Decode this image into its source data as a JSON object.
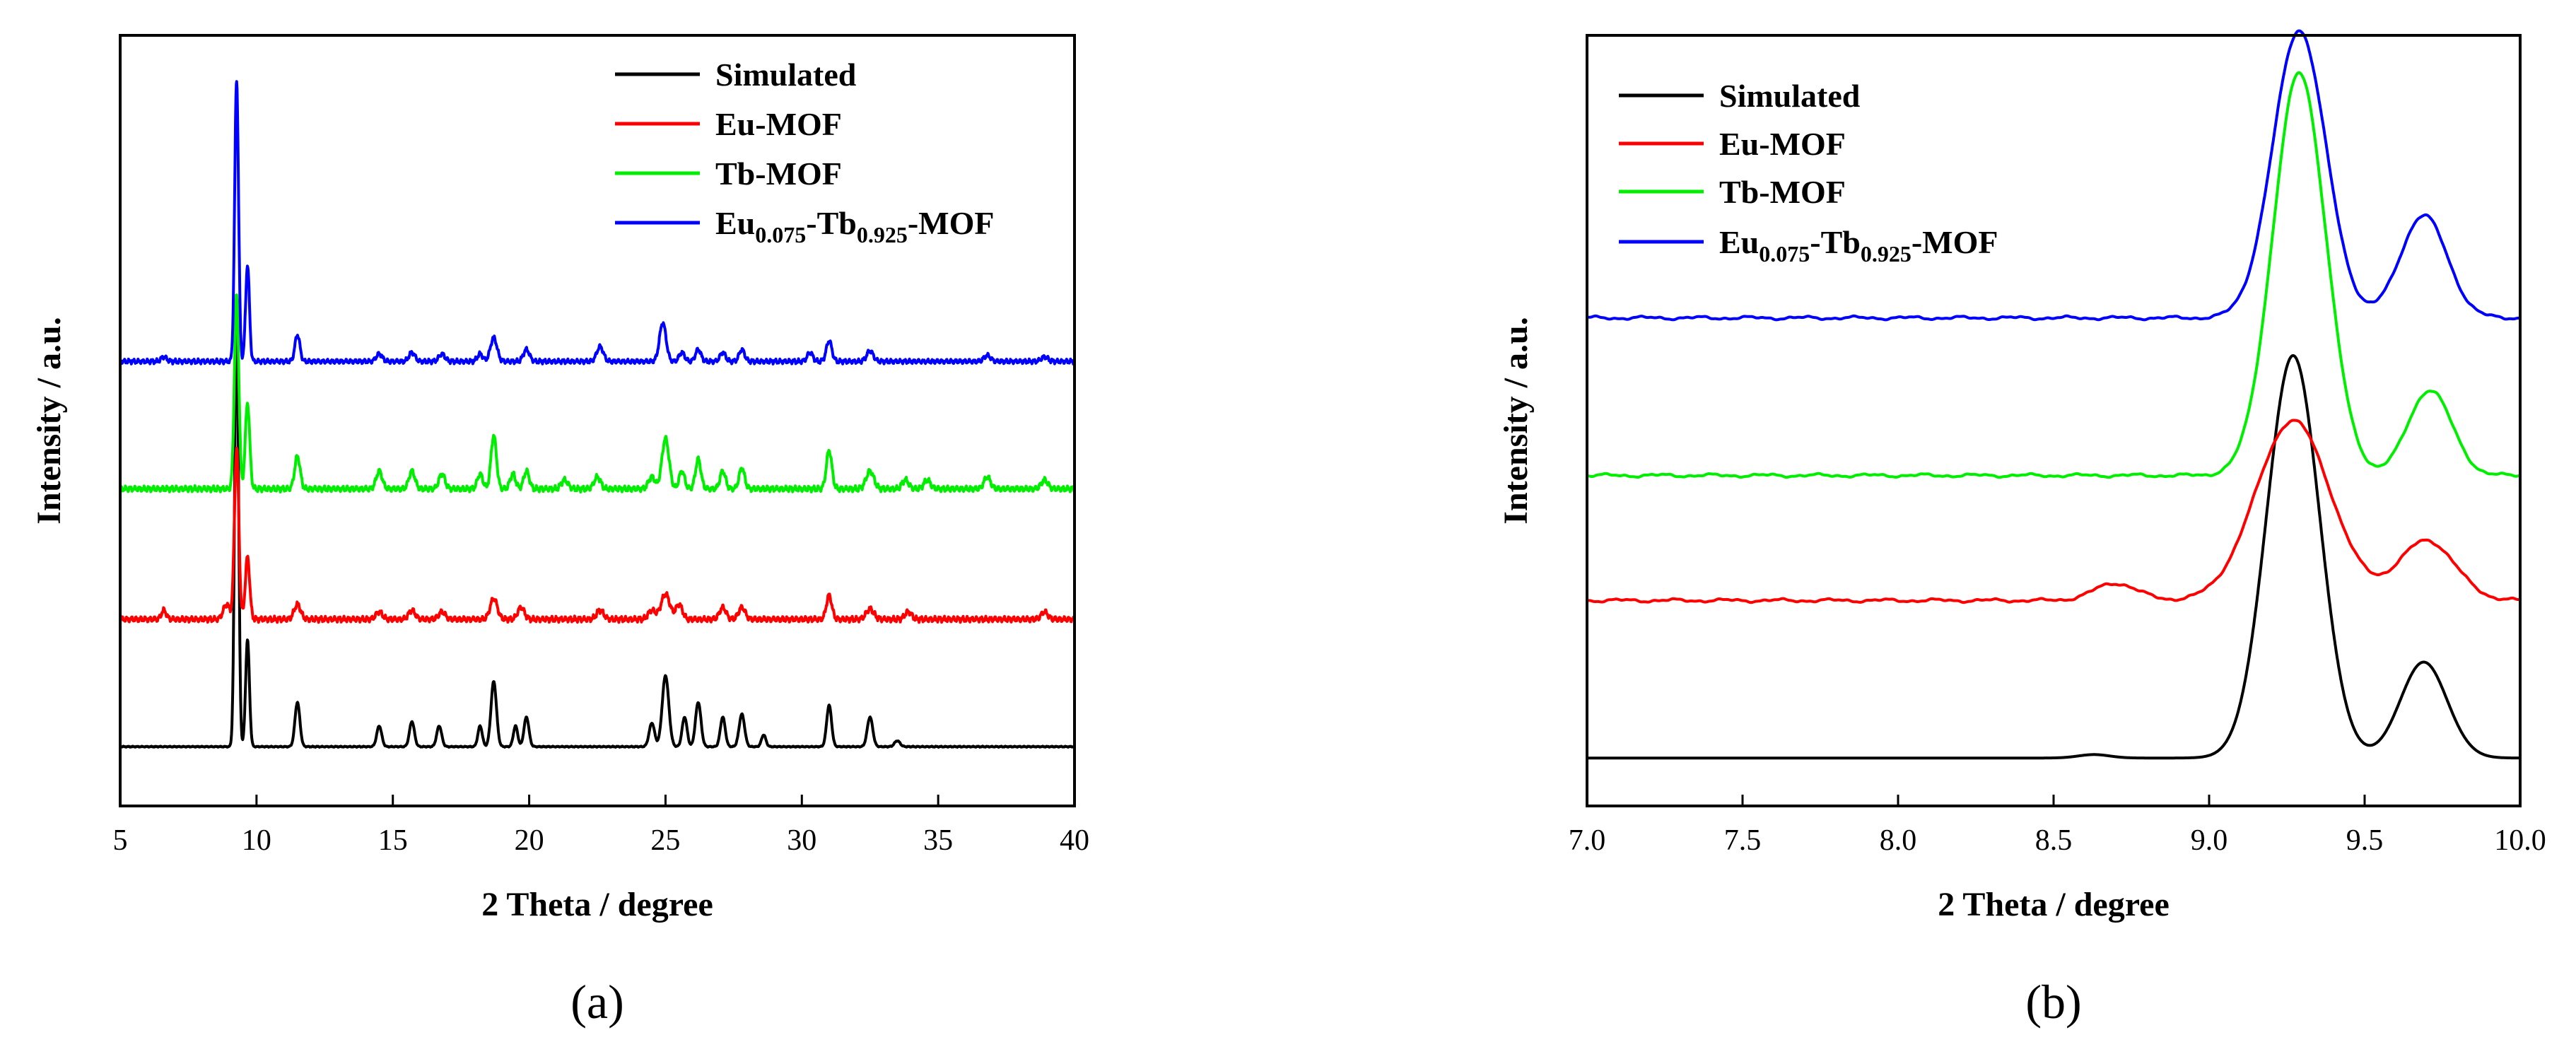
{
  "chart_data": [
    {
      "type": "line",
      "panel": "a",
      "panel_label": "(a)",
      "xlabel": "2 Theta / degree",
      "ylabel": "Intensity / a.u.",
      "xlim": [
        5,
        40
      ],
      "ylim": [
        0,
        5.2
      ],
      "xticks": [
        5,
        10,
        15,
        20,
        25,
        30,
        35,
        40
      ],
      "xtick_labels": [
        "5",
        "10",
        "15",
        "20",
        "25",
        "30",
        "35",
        "40"
      ],
      "legend": {
        "position": "top-right",
        "entries": [
          {
            "text": "Simulated",
            "color": "#000000"
          },
          {
            "text": "Eu-MOF",
            "color": "#ff0000"
          },
          {
            "text": "Tb-MOF",
            "color": "#00ee00"
          },
          {
            "main": "Eu",
            "sub1": "0.075",
            "mid": "-Tb",
            "sub2": "0.925",
            "tail": "-MOF",
            "color": "#0000ff"
          }
        ]
      },
      "series": [
        {
          "name": "Simulated",
          "color": "#000000",
          "offset": 0.4,
          "noise": 0.004,
          "peaks": [
            [
              9.27,
              3.0,
              0.07
            ],
            [
              9.67,
              0.72,
              0.07
            ],
            [
              11.5,
              0.3,
              0.09
            ],
            [
              14.5,
              0.14,
              0.09
            ],
            [
              15.7,
              0.17,
              0.09
            ],
            [
              16.7,
              0.14,
              0.09
            ],
            [
              18.2,
              0.14,
              0.08
            ],
            [
              18.7,
              0.44,
              0.1
            ],
            [
              19.5,
              0.14,
              0.08
            ],
            [
              19.9,
              0.2,
              0.09
            ],
            [
              24.5,
              0.16,
              0.1
            ],
            [
              25.0,
              0.48,
              0.12
            ],
            [
              25.7,
              0.2,
              0.09
            ],
            [
              26.2,
              0.3,
              0.1
            ],
            [
              27.1,
              0.2,
              0.09
            ],
            [
              27.8,
              0.22,
              0.1
            ],
            [
              28.6,
              0.08,
              0.08
            ],
            [
              31.0,
              0.28,
              0.09
            ],
            [
              32.5,
              0.2,
              0.1
            ],
            [
              33.5,
              0.04,
              0.1
            ]
          ]
        },
        {
          "name": "Eu-MOF",
          "color": "#ff0000",
          "offset": 1.26,
          "noise": 0.022,
          "peaks": [
            [
              6.6,
              0.06,
              0.09
            ],
            [
              8.9,
              0.1,
              0.12
            ],
            [
              9.27,
              1.15,
              0.08
            ],
            [
              9.67,
              0.42,
              0.08
            ],
            [
              11.5,
              0.1,
              0.12
            ],
            [
              14.5,
              0.05,
              0.12
            ],
            [
              15.7,
              0.06,
              0.12
            ],
            [
              16.8,
              0.05,
              0.12
            ],
            [
              18.7,
              0.14,
              0.13
            ],
            [
              19.7,
              0.08,
              0.12
            ],
            [
              22.6,
              0.06,
              0.13
            ],
            [
              24.5,
              0.06,
              0.13
            ],
            [
              25.0,
              0.17,
              0.16
            ],
            [
              25.5,
              0.1,
              0.12
            ],
            [
              27.1,
              0.08,
              0.12
            ],
            [
              27.8,
              0.08,
              0.12
            ],
            [
              31.0,
              0.16,
              0.1
            ],
            [
              32.5,
              0.07,
              0.14
            ],
            [
              33.9,
              0.05,
              0.12
            ],
            [
              38.9,
              0.05,
              0.12
            ]
          ]
        },
        {
          "name": "Tb-MOF",
          "color": "#00ee00",
          "offset": 2.14,
          "noise": 0.022,
          "peaks": [
            [
              9.27,
              1.3,
              0.08
            ],
            [
              9.67,
              0.58,
              0.08
            ],
            [
              11.5,
              0.22,
              0.1
            ],
            [
              14.5,
              0.12,
              0.11
            ],
            [
              15.7,
              0.12,
              0.11
            ],
            [
              16.8,
              0.1,
              0.11
            ],
            [
              18.2,
              0.1,
              0.1
            ],
            [
              18.7,
              0.36,
              0.1
            ],
            [
              19.4,
              0.1,
              0.1
            ],
            [
              19.9,
              0.12,
              0.1
            ],
            [
              21.3,
              0.06,
              0.12
            ],
            [
              22.5,
              0.08,
              0.12
            ],
            [
              24.5,
              0.08,
              0.12
            ],
            [
              25.0,
              0.34,
              0.13
            ],
            [
              25.6,
              0.12,
              0.1
            ],
            [
              26.2,
              0.2,
              0.1
            ],
            [
              27.1,
              0.12,
              0.1
            ],
            [
              27.8,
              0.14,
              0.1
            ],
            [
              31.0,
              0.26,
              0.1
            ],
            [
              32.5,
              0.12,
              0.14
            ],
            [
              33.8,
              0.06,
              0.12
            ],
            [
              34.6,
              0.06,
              0.12
            ],
            [
              36.8,
              0.08,
              0.12
            ],
            [
              38.9,
              0.06,
              0.12
            ]
          ]
        },
        {
          "name": "Eu0.075-Tb0.925-MOF",
          "color": "#0000ff",
          "offset": 3.0,
          "noise": 0.018,
          "peaks": [
            [
              6.6,
              0.03,
              0.1
            ],
            [
              9.27,
              1.9,
              0.07
            ],
            [
              9.67,
              0.65,
              0.07
            ],
            [
              11.5,
              0.18,
              0.09
            ],
            [
              14.5,
              0.05,
              0.11
            ],
            [
              15.7,
              0.06,
              0.11
            ],
            [
              16.8,
              0.05,
              0.11
            ],
            [
              18.2,
              0.05,
              0.1
            ],
            [
              18.7,
              0.16,
              0.12
            ],
            [
              19.9,
              0.08,
              0.11
            ],
            [
              22.6,
              0.1,
              0.12
            ],
            [
              24.9,
              0.26,
              0.12
            ],
            [
              25.6,
              0.06,
              0.1
            ],
            [
              26.2,
              0.08,
              0.1
            ],
            [
              27.1,
              0.06,
              0.1
            ],
            [
              27.8,
              0.08,
              0.1
            ],
            [
              30.3,
              0.06,
              0.1
            ],
            [
              31.0,
              0.14,
              0.1
            ],
            [
              32.5,
              0.07,
              0.12
            ],
            [
              36.8,
              0.04,
              0.12
            ],
            [
              38.9,
              0.03,
              0.12
            ]
          ]
        }
      ]
    },
    {
      "type": "line",
      "panel": "b",
      "panel_label": "(b)",
      "xlabel": "2 Theta / degree",
      "ylabel": "Intensity / a.u.",
      "xlim": [
        7.0,
        10.0
      ],
      "ylim": [
        0,
        4.5
      ],
      "xticks": [
        7.0,
        7.5,
        8.0,
        8.5,
        9.0,
        9.5,
        10.0
      ],
      "xtick_labels": [
        "7.0",
        "7.5",
        "8.0",
        "8.5",
        "9.0",
        "9.5",
        "10.0"
      ],
      "legend": {
        "position": "top-left",
        "entries": [
          {
            "text": "Simulated",
            "color": "#000000"
          },
          {
            "text": "Eu-MOF",
            "color": "#ff0000"
          },
          {
            "text": "Tb-MOF",
            "color": "#00ee00"
          },
          {
            "main": "Eu",
            "sub1": "0.075",
            "mid": "-Tb",
            "sub2": "0.925",
            "tail": "-MOF",
            "color": "#0000ff"
          }
        ]
      },
      "series": [
        {
          "name": "Simulated",
          "color": "#000000",
          "offset": 0.28,
          "noise": 0.0,
          "peaks": [
            [
              8.63,
              0.02,
              0.05
            ],
            [
              9.27,
              2.35,
              0.085
            ],
            [
              9.69,
              0.56,
              0.075
            ]
          ]
        },
        {
          "name": "Eu-MOF",
          "color": "#ff0000",
          "offset": 1.2,
          "noise": 0.012,
          "peaks": [
            [
              8.7,
              0.1,
              0.07
            ],
            [
              9.27,
              1.05,
              0.12
            ],
            [
              9.7,
              0.35,
              0.09
            ]
          ]
        },
        {
          "name": "Tb-MOF",
          "color": "#00ee00",
          "offset": 1.93,
          "noise": 0.012,
          "peaks": [
            [
              9.29,
              2.35,
              0.085
            ],
            [
              9.71,
              0.5,
              0.07
            ]
          ]
        },
        {
          "name": "Eu0.075-Tb0.925-MOF",
          "color": "#0000ff",
          "offset": 2.85,
          "noise": 0.012,
          "peaks": [
            [
              9.29,
              1.68,
              0.085
            ],
            [
              9.69,
              0.6,
              0.075
            ]
          ]
        }
      ]
    }
  ]
}
